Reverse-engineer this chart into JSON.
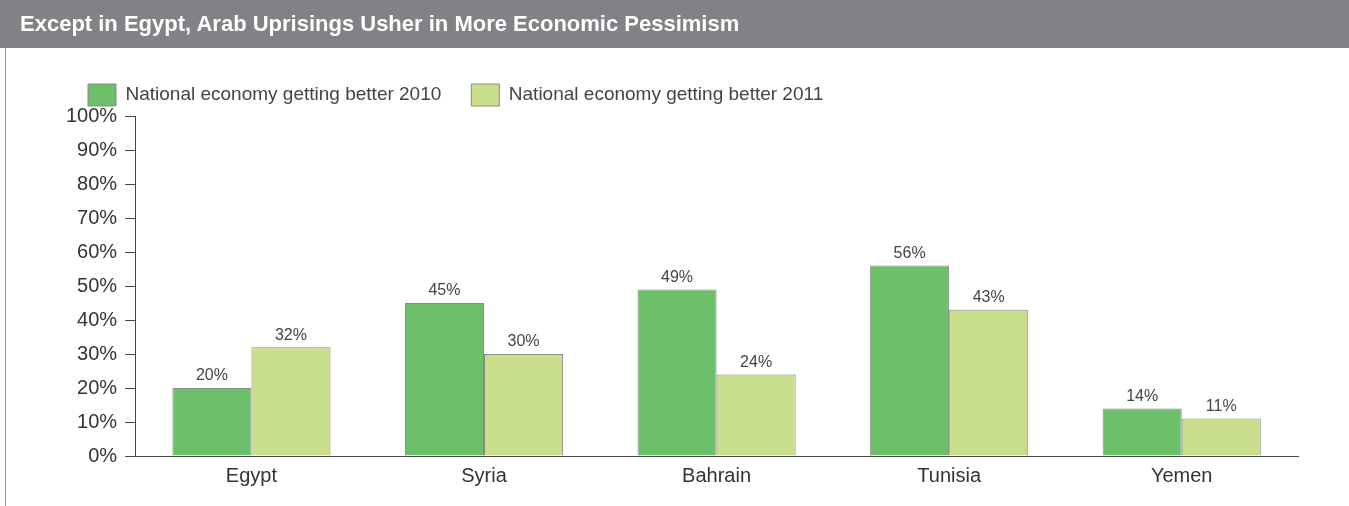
{
  "chart_data": {
    "type": "bar",
    "title": "Except in Egypt, Arab Uprisings Usher in More Economic Pessimism",
    "categories": [
      "Egypt",
      "Syria",
      "Bahrain",
      "Tunisia",
      "Yemen"
    ],
    "series": [
      {
        "name": "National economy getting better 2010",
        "color": "#6cc069",
        "values": [
          20,
          45,
          49,
          56,
          14
        ],
        "value_labels": [
          "20%",
          "45%",
          "49%",
          "56%",
          "14%"
        ]
      },
      {
        "name": "National economy getting better 2011",
        "color": "#c9df8c",
        "values": [
          32,
          30,
          24,
          43,
          11
        ],
        "value_labels": [
          "32%",
          "30%",
          "24%",
          "43%",
          "11%"
        ]
      }
    ],
    "ylim": [
      0,
      100
    ],
    "yticks": [
      {
        "value": 0,
        "label": "0%"
      },
      {
        "value": 10,
        "label": "10%"
      },
      {
        "value": 20,
        "label": "20%"
      },
      {
        "value": 30,
        "label": "30%"
      },
      {
        "value": 40,
        "label": "40%"
      },
      {
        "value": 50,
        "label": "50%"
      },
      {
        "value": 60,
        "label": "60%"
      },
      {
        "value": 70,
        "label": "70%"
      },
      {
        "value": 80,
        "label": "80%"
      },
      {
        "value": 90,
        "label": "90%"
      },
      {
        "value": 100,
        "label": "100%"
      }
    ],
    "grid": false,
    "legend": "top left"
  }
}
